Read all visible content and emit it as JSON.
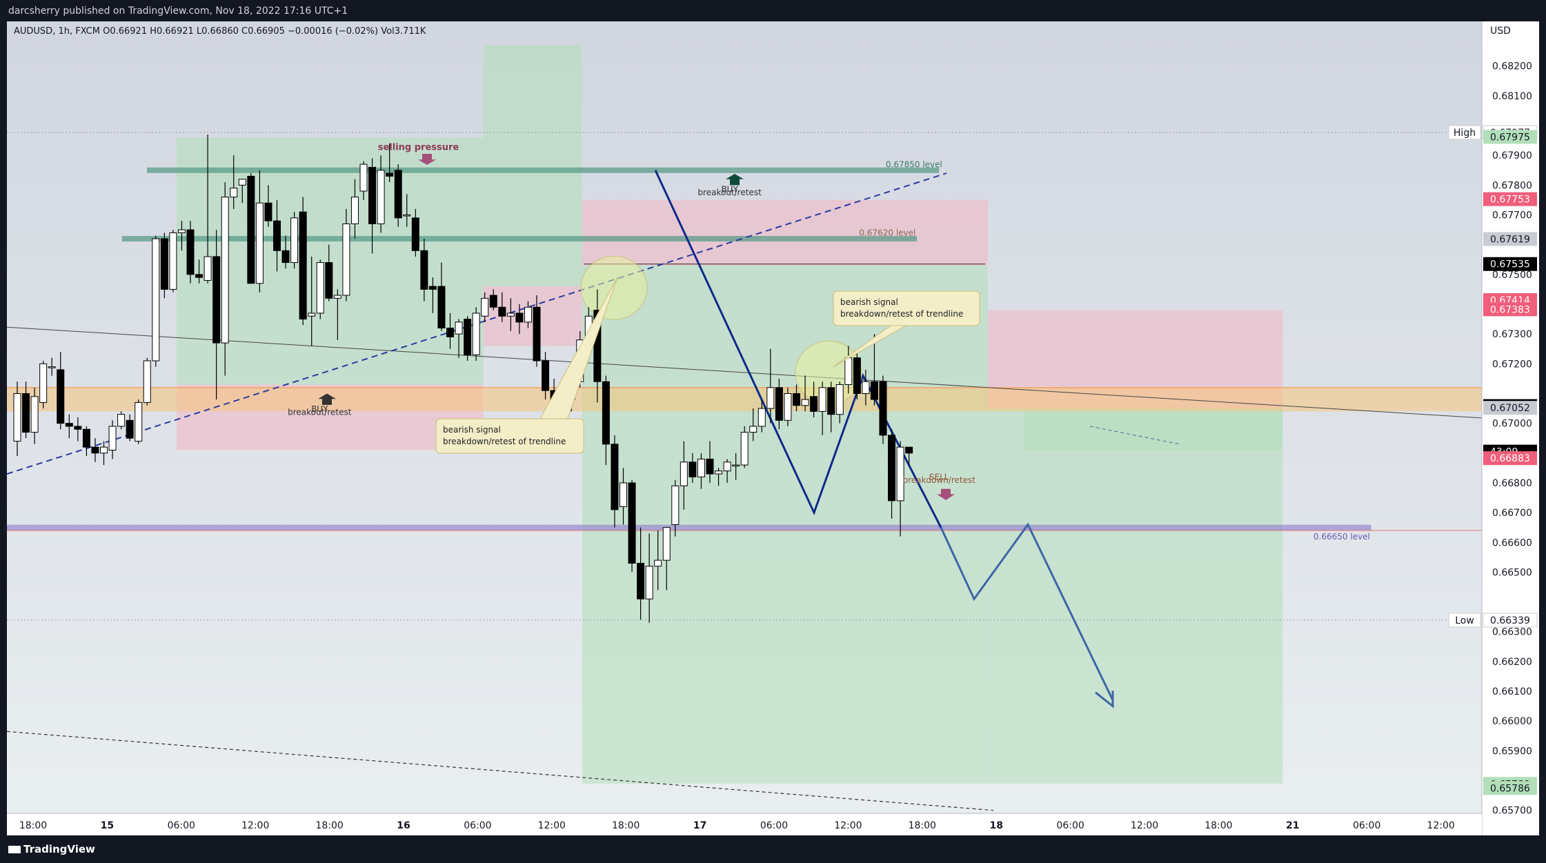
{
  "header": {
    "publish_line": "darcsherry published on TradingView.com, Nov 18, 2022 17:16 UTC+1",
    "symbol_line": "AUDUSD, 1h, FXCM  O0.66921  H0.66921  L0.66860  C0.66905  −0.00016 (−0.02%)  Vol3.711K"
  },
  "footer": {
    "brand": "TradingView"
  },
  "colors": {
    "bull_body": "#ffffff",
    "bear_body": "#000000",
    "wick": "#000000",
    "profit_zone": "#b2dfb9",
    "loss_zone": "#f3b7c3",
    "level_line": "#5b9c8a",
    "purple_level": "#9b8ed1",
    "orange_zone": "#f5c57a",
    "trend_blue": "#0d2a8a",
    "projection_blue": "#3d66a6",
    "bg_top": "#d2d6e0",
    "bg_bottom": "#e8edf0"
  },
  "chart_data": {
    "type": "candlestick",
    "symbol": "AUDUSD",
    "timeframe": "1h",
    "currency": "USD",
    "x_tick_labels": [
      "18:00",
      "15",
      "06:00",
      "12:00",
      "18:00",
      "16",
      "06:00",
      "12:00",
      "18:00",
      "17",
      "06:00",
      "12:00",
      "18:00",
      "18",
      "06:00",
      "12:00",
      "18:00",
      "21",
      "06:00",
      "12:00"
    ],
    "y_tick_labels": [
      "0.68200",
      "0.68100",
      "0.67900",
      "0.67800",
      "0.67700",
      "0.67500",
      "0.67300",
      "0.67200",
      "0.67000",
      "0.66800",
      "0.66700",
      "0.66600",
      "0.66500",
      "0.66300",
      "0.66200",
      "0.66100",
      "0.66000",
      "0.65900",
      "0.65700"
    ],
    "ylim": [
      0.6569,
      0.6835
    ],
    "candles": [
      {
        "o": 0.6694,
        "h": 0.6714,
        "l": 0.6689,
        "c": 0.671
      },
      {
        "o": 0.671,
        "h": 0.6714,
        "l": 0.6695,
        "c": 0.6697
      },
      {
        "o": 0.6697,
        "h": 0.6712,
        "l": 0.6693,
        "c": 0.6709
      },
      {
        "o": 0.6707,
        "h": 0.6721,
        "l": 0.6705,
        "c": 0.672
      },
      {
        "o": 0.6719,
        "h": 0.6722,
        "l": 0.6716,
        "c": 0.6719
      },
      {
        "o": 0.6718,
        "h": 0.6724,
        "l": 0.6698,
        "c": 0.67
      },
      {
        "o": 0.67,
        "h": 0.6703,
        "l": 0.6695,
        "c": 0.6699
      },
      {
        "o": 0.6699,
        "h": 0.6702,
        "l": 0.6694,
        "c": 0.6698
      },
      {
        "o": 0.6698,
        "h": 0.6699,
        "l": 0.6689,
        "c": 0.6692
      },
      {
        "o": 0.6692,
        "h": 0.6695,
        "l": 0.6687,
        "c": 0.669
      },
      {
        "o": 0.669,
        "h": 0.6694,
        "l": 0.6686,
        "c": 0.6692
      },
      {
        "o": 0.6691,
        "h": 0.6701,
        "l": 0.6688,
        "c": 0.6699
      },
      {
        "o": 0.6699,
        "h": 0.6704,
        "l": 0.6698,
        "c": 0.6703
      },
      {
        "o": 0.6701,
        "h": 0.6703,
        "l": 0.6694,
        "c": 0.6695
      },
      {
        "o": 0.6694,
        "h": 0.6708,
        "l": 0.6693,
        "c": 0.6707
      },
      {
        "o": 0.6707,
        "h": 0.6722,
        "l": 0.6706,
        "c": 0.6721
      },
      {
        "o": 0.6721,
        "h": 0.6763,
        "l": 0.6719,
        "c": 0.6762
      },
      {
        "o": 0.6762,
        "h": 0.6764,
        "l": 0.6742,
        "c": 0.6745
      },
      {
        "o": 0.6745,
        "h": 0.6765,
        "l": 0.6744,
        "c": 0.6764
      },
      {
        "o": 0.6764,
        "h": 0.6768,
        "l": 0.6758,
        "c": 0.6765
      },
      {
        "o": 0.6765,
        "h": 0.6768,
        "l": 0.6747,
        "c": 0.675
      },
      {
        "o": 0.675,
        "h": 0.6755,
        "l": 0.6747,
        "c": 0.6749
      },
      {
        "o": 0.6748,
        "h": 0.6797,
        "l": 0.6747,
        "c": 0.6756
      },
      {
        "o": 0.6756,
        "h": 0.6765,
        "l": 0.6708,
        "c": 0.6727
      },
      {
        "o": 0.6727,
        "h": 0.6781,
        "l": 0.6716,
        "c": 0.6776
      },
      {
        "o": 0.6776,
        "h": 0.679,
        "l": 0.6772,
        "c": 0.6779
      },
      {
        "o": 0.678,
        "h": 0.6782,
        "l": 0.6774,
        "c": 0.6782
      },
      {
        "o": 0.6783,
        "h": 0.6784,
        "l": 0.6747,
        "c": 0.6747
      },
      {
        "o": 0.6747,
        "h": 0.6785,
        "l": 0.6744,
        "c": 0.6774
      },
      {
        "o": 0.6774,
        "h": 0.678,
        "l": 0.6766,
        "c": 0.6768
      },
      {
        "o": 0.6768,
        "h": 0.6775,
        "l": 0.6751,
        "c": 0.6758
      },
      {
        "o": 0.6758,
        "h": 0.6763,
        "l": 0.6752,
        "c": 0.6754
      },
      {
        "o": 0.6754,
        "h": 0.6771,
        "l": 0.6752,
        "c": 0.6769
      },
      {
        "o": 0.6771,
        "h": 0.6776,
        "l": 0.6733,
        "c": 0.6735
      },
      {
        "o": 0.6736,
        "h": 0.6756,
        "l": 0.6726,
        "c": 0.6737
      },
      {
        "o": 0.6737,
        "h": 0.6755,
        "l": 0.6735,
        "c": 0.6754
      },
      {
        "o": 0.6754,
        "h": 0.676,
        "l": 0.6741,
        "c": 0.6742
      },
      {
        "o": 0.6742,
        "h": 0.6745,
        "l": 0.6728,
        "c": 0.6743
      },
      {
        "o": 0.6743,
        "h": 0.6772,
        "l": 0.6741,
        "c": 0.6767
      },
      {
        "o": 0.6767,
        "h": 0.6782,
        "l": 0.6762,
        "c": 0.6776
      },
      {
        "o": 0.6778,
        "h": 0.6788,
        "l": 0.6775,
        "c": 0.6787
      },
      {
        "o": 0.6786,
        "h": 0.6789,
        "l": 0.6757,
        "c": 0.6767
      },
      {
        "o": 0.6767,
        "h": 0.679,
        "l": 0.6764,
        "c": 0.6785
      },
      {
        "o": 0.6784,
        "h": 0.6794,
        "l": 0.6781,
        "c": 0.6783
      },
      {
        "o": 0.6785,
        "h": 0.6787,
        "l": 0.6766,
        "c": 0.6769
      },
      {
        "o": 0.677,
        "h": 0.6777,
        "l": 0.6766,
        "c": 0.677
      },
      {
        "o": 0.6769,
        "h": 0.6772,
        "l": 0.6756,
        "c": 0.6758
      },
      {
        "o": 0.6758,
        "h": 0.6762,
        "l": 0.6741,
        "c": 0.6745
      },
      {
        "o": 0.6746,
        "h": 0.6749,
        "l": 0.6737,
        "c": 0.6745
      },
      {
        "o": 0.6746,
        "h": 0.6754,
        "l": 0.6731,
        "c": 0.6732
      },
      {
        "o": 0.6732,
        "h": 0.6737,
        "l": 0.6725,
        "c": 0.6729
      },
      {
        "o": 0.673,
        "h": 0.6735,
        "l": 0.6722,
        "c": 0.6734
      },
      {
        "o": 0.6735,
        "h": 0.6736,
        "l": 0.6721,
        "c": 0.6723
      },
      {
        "o": 0.6723,
        "h": 0.6739,
        "l": 0.6721,
        "c": 0.6737
      },
      {
        "o": 0.6736,
        "h": 0.6744,
        "l": 0.6734,
        "c": 0.6742
      },
      {
        "o": 0.6743,
        "h": 0.6745,
        "l": 0.6738,
        "c": 0.6739
      },
      {
        "o": 0.6739,
        "h": 0.6744,
        "l": 0.6734,
        "c": 0.6736
      },
      {
        "o": 0.6736,
        "h": 0.6742,
        "l": 0.6731,
        "c": 0.6737
      },
      {
        "o": 0.6737,
        "h": 0.674,
        "l": 0.673,
        "c": 0.6734
      },
      {
        "o": 0.6734,
        "h": 0.6741,
        "l": 0.6732,
        "c": 0.6739
      },
      {
        "o": 0.6739,
        "h": 0.6743,
        "l": 0.6719,
        "c": 0.6721
      },
      {
        "o": 0.6721,
        "h": 0.6724,
        "l": 0.6708,
        "c": 0.6711
      },
      {
        "o": 0.6711,
        "h": 0.6715,
        "l": 0.6699,
        "c": 0.6704
      },
      {
        "o": 0.6704,
        "h": 0.6712,
        "l": 0.6699,
        "c": 0.6708
      },
      {
        "o": 0.6708,
        "h": 0.6716,
        "l": 0.6704,
        "c": 0.6713
      },
      {
        "o": 0.6714,
        "h": 0.6731,
        "l": 0.6712,
        "c": 0.6728
      },
      {
        "o": 0.6728,
        "h": 0.6739,
        "l": 0.6725,
        "c": 0.6736
      },
      {
        "o": 0.6738,
        "h": 0.6745,
        "l": 0.6707,
        "c": 0.6714
      },
      {
        "o": 0.6714,
        "h": 0.6716,
        "l": 0.6686,
        "c": 0.6693
      },
      {
        "o": 0.6693,
        "h": 0.6696,
        "l": 0.6665,
        "c": 0.6671
      },
      {
        "o": 0.6672,
        "h": 0.6685,
        "l": 0.6666,
        "c": 0.668
      },
      {
        "o": 0.668,
        "h": 0.6681,
        "l": 0.665,
        "c": 0.6653
      },
      {
        "o": 0.6653,
        "h": 0.6665,
        "l": 0.6634,
        "c": 0.6641
      },
      {
        "o": 0.6641,
        "h": 0.6663,
        "l": 0.6633,
        "c": 0.6652
      },
      {
        "o": 0.6652,
        "h": 0.6664,
        "l": 0.6644,
        "c": 0.6654
      },
      {
        "o": 0.6654,
        "h": 0.6665,
        "l": 0.6644,
        "c": 0.6665
      },
      {
        "o": 0.6666,
        "h": 0.6681,
        "l": 0.6662,
        "c": 0.6679
      },
      {
        "o": 0.6679,
        "h": 0.6694,
        "l": 0.6671,
        "c": 0.6687
      },
      {
        "o": 0.6687,
        "h": 0.669,
        "l": 0.668,
        "c": 0.6682
      },
      {
        "o": 0.6682,
        "h": 0.669,
        "l": 0.6678,
        "c": 0.6688
      },
      {
        "o": 0.6688,
        "h": 0.6694,
        "l": 0.668,
        "c": 0.6683
      },
      {
        "o": 0.6683,
        "h": 0.6685,
        "l": 0.6679,
        "c": 0.6684
      },
      {
        "o": 0.6684,
        "h": 0.6688,
        "l": 0.668,
        "c": 0.6687
      },
      {
        "o": 0.6686,
        "h": 0.669,
        "l": 0.6681,
        "c": 0.6686
      },
      {
        "o": 0.6686,
        "h": 0.6699,
        "l": 0.6685,
        "c": 0.6697
      },
      {
        "o": 0.6697,
        "h": 0.6705,
        "l": 0.6694,
        "c": 0.6699
      },
      {
        "o": 0.6699,
        "h": 0.6708,
        "l": 0.6697,
        "c": 0.6705
      },
      {
        "o": 0.6705,
        "h": 0.6725,
        "l": 0.67,
        "c": 0.6712
      },
      {
        "o": 0.6712,
        "h": 0.6715,
        "l": 0.6698,
        "c": 0.6701
      },
      {
        "o": 0.6701,
        "h": 0.6712,
        "l": 0.6699,
        "c": 0.671
      },
      {
        "o": 0.671,
        "h": 0.6713,
        "l": 0.6704,
        "c": 0.6706
      },
      {
        "o": 0.6706,
        "h": 0.6716,
        "l": 0.6704,
        "c": 0.6708
      },
      {
        "o": 0.6709,
        "h": 0.6714,
        "l": 0.6702,
        "c": 0.6704
      },
      {
        "o": 0.6704,
        "h": 0.6714,
        "l": 0.6696,
        "c": 0.6712
      },
      {
        "o": 0.6712,
        "h": 0.6714,
        "l": 0.6697,
        "c": 0.6703
      },
      {
        "o": 0.6703,
        "h": 0.6714,
        "l": 0.67,
        "c": 0.6713
      },
      {
        "o": 0.6713,
        "h": 0.6726,
        "l": 0.671,
        "c": 0.6722
      },
      {
        "o": 0.6722,
        "h": 0.6724,
        "l": 0.6708,
        "c": 0.671
      },
      {
        "o": 0.671,
        "h": 0.6718,
        "l": 0.6706,
        "c": 0.6714
      },
      {
        "o": 0.6714,
        "h": 0.673,
        "l": 0.6706,
        "c": 0.6708
      },
      {
        "o": 0.6714,
        "h": 0.6716,
        "l": 0.6693,
        "c": 0.6696
      },
      {
        "o": 0.6696,
        "h": 0.6698,
        "l": 0.6668,
        "c": 0.6674
      },
      {
        "o": 0.6674,
        "h": 0.6694,
        "l": 0.6662,
        "c": 0.6692
      },
      {
        "o": 0.6692,
        "h": 0.6692,
        "l": 0.6686,
        "c": 0.669
      }
    ],
    "zones": [
      {
        "kind": "profit",
        "x0": 0.115,
        "x1": 0.188,
        "y0": 0.6713,
        "y1": 0.6796
      },
      {
        "kind": "profit",
        "x0": 0.188,
        "x1": 0.323,
        "y0": 0.6713,
        "y1": 0.6796
      },
      {
        "kind": "loss",
        "x0": 0.115,
        "x1": 0.323,
        "y0": 0.6691,
        "y1": 0.6713
      },
      {
        "kind": "profit",
        "x0": 0.323,
        "x1": 0.39,
        "y0": 0.6746,
        "y1": 0.6827
      },
      {
        "kind": "loss",
        "x0": 0.323,
        "x1": 0.39,
        "y0": 0.6726,
        "y1": 0.6746
      },
      {
        "kind": "loss",
        "x0": 0.39,
        "x1": 0.665,
        "y0": 0.6753,
        "y1": 0.6775
      },
      {
        "kind": "profit",
        "x0": 0.39,
        "x1": 0.665,
        "y0": 0.6579,
        "y1": 0.6753
      },
      {
        "kind": "loss",
        "x0": 0.665,
        "x1": 0.865,
        "y0": 0.6705,
        "y1": 0.6738
      },
      {
        "kind": "profit",
        "x0": 0.665,
        "x1": 0.865,
        "y0": 0.6579,
        "y1": 0.6705
      },
      {
        "kind": "profit",
        "x0": 0.69,
        "x1": 0.865,
        "y0": 0.6691,
        "y1": 0.6705
      }
    ],
    "levels": [
      {
        "name": "0.67850 level",
        "price": 0.6785,
        "x0": 0.095,
        "x1": 0.632,
        "color": "#5b9c8a"
      },
      {
        "name": "0.67620 level",
        "price": 0.6762,
        "x0": 0.078,
        "x1": 0.617,
        "color": "#5b9c8a"
      },
      {
        "name": "0.66650 level",
        "price": 0.6665,
        "x0": 0.0,
        "x1": 0.925,
        "color": "#9b8ed1"
      }
    ],
    "annotations": [
      {
        "text": "selling pressure",
        "x": 0.279,
        "price": 0.67918
      },
      {
        "text": "0.67850 level",
        "x": 0.615,
        "price": 0.6786
      },
      {
        "text": "0.67620 level",
        "x": 0.597,
        "price": 0.6763
      },
      {
        "text": "BUY",
        "x": 0.49,
        "price": 0.67776
      },
      {
        "text": "breakout/retest",
        "x": 0.49,
        "price": 0.67766
      },
      {
        "text": "BUY",
        "x": 0.212,
        "price": 0.67038
      },
      {
        "text": "breakout/retest",
        "x": 0.212,
        "price": 0.67028
      },
      {
        "text": "SELL",
        "x": 0.632,
        "price": 0.6681
      },
      {
        "text": "breakdown/retest",
        "x": 0.632,
        "price": 0.668
      },
      {
        "text": "0.66650 level",
        "x": 0.905,
        "price": 0.6661
      },
      {
        "text": "bearish signal",
        "x1": 0.292,
        "price": 0.66986
      },
      {
        "text": "breakdown/retest of trendline",
        "x1": 0.292,
        "price": 0.66974
      },
      {
        "text": "bearish signal",
        "x1": 0.563,
        "price": 0.67424
      },
      {
        "text": "breakdown/retest of trendline",
        "x1": 0.563,
        "price": 0.6741
      }
    ],
    "price_badges": [
      {
        "label": "0.67977",
        "price": 0.67977,
        "style": "plain"
      },
      {
        "label": "0.67975",
        "price": 0.67962,
        "style": "green"
      },
      {
        "label": "0.67753",
        "price": 0.67753,
        "style": "red"
      },
      {
        "label": "0.67619",
        "price": 0.67619,
        "style": "gray"
      },
      {
        "label": "0.67535",
        "price": 0.67535,
        "style": "black"
      },
      {
        "label": "0.67414",
        "price": 0.67414,
        "style": "red"
      },
      {
        "label": "0.67383",
        "price": 0.67383,
        "style": "red"
      },
      {
        "label": "0.67058",
        "price": 0.67058,
        "style": "black"
      },
      {
        "label": "0.67052",
        "price": 0.67052,
        "style": "gray"
      },
      {
        "label": "43:09",
        "price": 0.66905,
        "style": "black"
      },
      {
        "label": "0.66883",
        "price": 0.66883,
        "style": "red"
      },
      {
        "label": "0.66339",
        "price": 0.66339,
        "style": "plain"
      },
      {
        "label": "0.65789",
        "price": 0.65789,
        "style": "green"
      },
      {
        "label": "0.65786",
        "price": 0.65775,
        "style": "green"
      }
    ],
    "high_label": "High",
    "low_label": "Low",
    "high_price": 0.67977,
    "low_price": 0.66339
  }
}
